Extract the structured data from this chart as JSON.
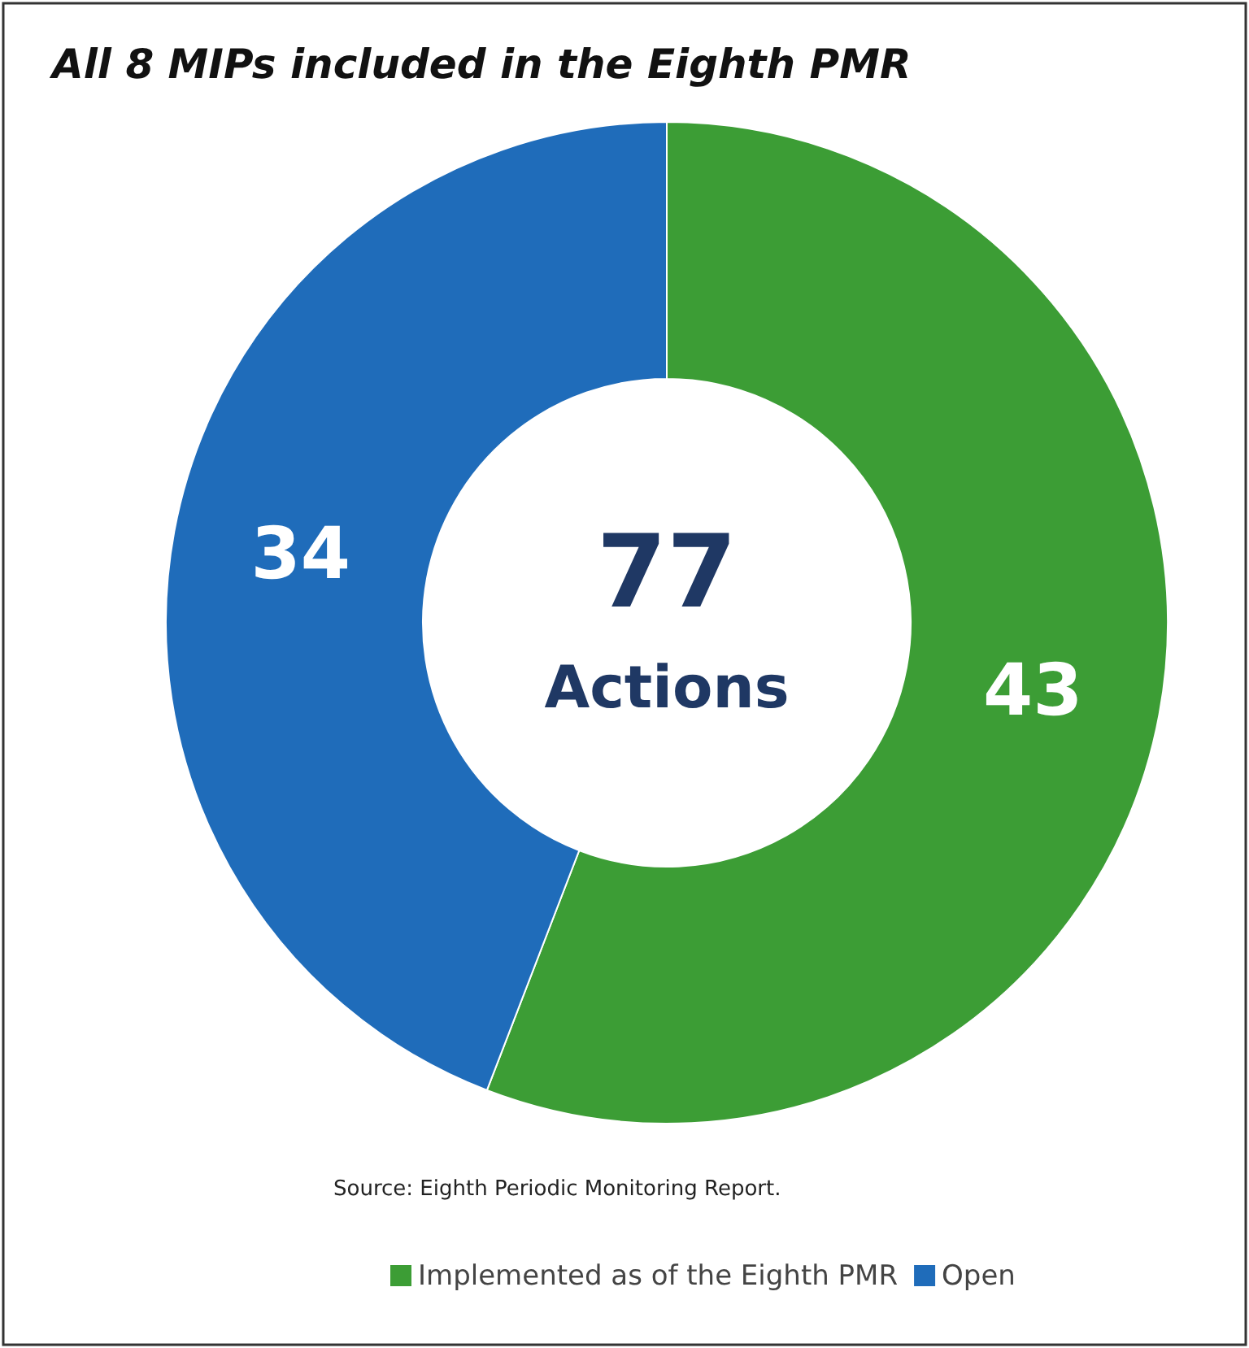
{
  "chart_data": {
    "type": "donut",
    "title": "All 8 MIPs included in the Eighth PMR",
    "categories": [
      "Implemented as of the Eighth PMR",
      "Open"
    ],
    "values": [
      43,
      34
    ],
    "colors": [
      "#3c9d35",
      "#1f6cba"
    ],
    "data_labels": true,
    "legend": "bottom",
    "annotations": [
      "77",
      "Actions",
      "Source: Eighth Periodic Monitoring Report."
    ]
  }
}
